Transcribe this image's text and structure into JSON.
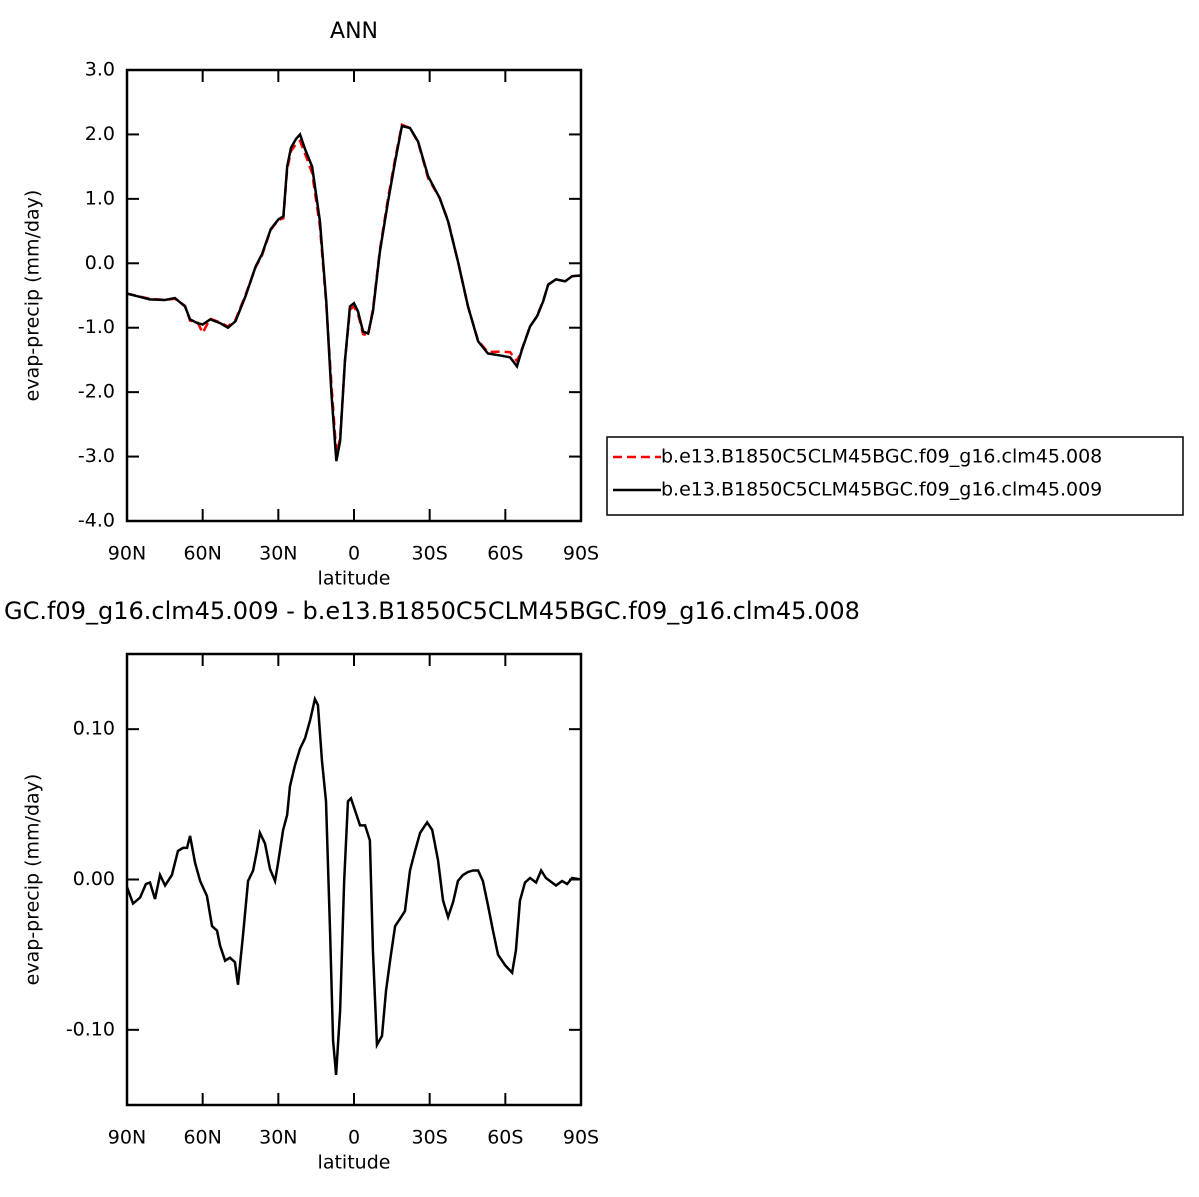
{
  "chart_data": [
    {
      "type": "line",
      "title": "ANN",
      "x_label": "latitude",
      "y_label": "evap-precip (mm/day)",
      "x": [
        90,
        81,
        75,
        71,
        67,
        65,
        62,
        60,
        57,
        53,
        50,
        47,
        43,
        39,
        36.5,
        33,
        30,
        28,
        26.5,
        25,
        23,
        21.4,
        19.4,
        16.6,
        13.5,
        11,
        9,
        7,
        5.5,
        3.6,
        1.6,
        0,
        -1.6,
        -3.6,
        -5.6,
        -7.5,
        -10.3,
        -13.5,
        -16.3,
        -19,
        -22.2,
        -25.4,
        -29.4,
        -34,
        -37.3,
        -41.2,
        -45.2,
        -49.2,
        -53.1,
        -57.9,
        -61.9,
        -64.6,
        -66.6,
        -69.8,
        -72.6,
        -75,
        -77,
        -80.1,
        -83.7,
        -86.5,
        -90
      ],
      "series": [
        {
          "name": "b.e13.B1850C5CLM45BGC.f09_g16.clm45.008",
          "color": "#ff0000",
          "dashed": true,
          "values": [
            -0.47,
            -0.55,
            -0.57,
            -0.55,
            -0.66,
            -0.89,
            -0.92,
            -1.08,
            -0.86,
            -0.92,
            -0.98,
            -0.88,
            -0.49,
            -0.06,
            0.12,
            0.52,
            0.67,
            0.7,
            1.46,
            1.74,
            1.85,
            1.9,
            1.7,
            1.4,
            0.57,
            -0.64,
            -1.85,
            -2.95,
            -2.72,
            -1.52,
            -0.72,
            -0.67,
            -0.79,
            -1.1,
            -1.12,
            -0.71,
            0.22,
            1.01,
            1.62,
            2.15,
            2.1,
            1.88,
            1.32,
            1.01,
            0.66,
            0.03,
            -0.67,
            -1.2,
            -1.38,
            -1.37,
            -1.38,
            -1.52,
            -1.33,
            -0.98,
            -0.82,
            -0.58,
            -0.33,
            -0.25,
            -0.28,
            -0.2,
            -0.19
          ]
        },
        {
          "name": "b.e13.B1850C5CLM45BGC.f09_g16.clm45.009",
          "color": "#000000",
          "dashed": false,
          "values": [
            -0.47,
            -0.56,
            -0.57,
            -0.54,
            -0.67,
            -0.87,
            -0.93,
            -0.95,
            -0.87,
            -0.93,
            -1.0,
            -0.9,
            -0.51,
            -0.05,
            0.14,
            0.53,
            0.68,
            0.73,
            1.5,
            1.79,
            1.93,
            2.0,
            1.77,
            1.5,
            0.65,
            -0.59,
            -1.99,
            -3.07,
            -2.76,
            -1.52,
            -0.67,
            -0.62,
            -0.75,
            -1.06,
            -1.09,
            -0.75,
            0.19,
            0.96,
            1.58,
            2.13,
            2.1,
            1.89,
            1.35,
            1.01,
            0.65,
            0.03,
            -0.67,
            -1.21,
            -1.4,
            -1.43,
            -1.46,
            -1.6,
            -1.34,
            -0.98,
            -0.82,
            -0.59,
            -0.33,
            -0.25,
            -0.28,
            -0.2,
            -0.19
          ]
        }
      ],
      "xlim": [
        90,
        -90
      ],
      "xticks": [
        {
          "value": 90,
          "label": "90N"
        },
        {
          "value": 60,
          "label": "60N"
        },
        {
          "value": 30,
          "label": "30N"
        },
        0,
        {
          "value": -30,
          "label": "30S"
        },
        {
          "value": -60,
          "label": "60S"
        },
        {
          "value": -90,
          "label": "90S"
        }
      ],
      "ylim": [
        -4,
        3
      ],
      "yticks": [
        {
          "value": 3,
          "label": "3.0"
        },
        {
          "value": 2,
          "label": "2.0"
        },
        {
          "value": 1,
          "label": "1.0"
        },
        {
          "value": 0,
          "label": "0.0"
        },
        {
          "value": -1,
          "label": "-1.0"
        },
        {
          "value": -2,
          "label": "-2.0"
        },
        {
          "value": -3,
          "label": "-3.0"
        },
        {
          "value": -4,
          "label": "-4.0"
        }
      ],
      "legend": "right"
    },
    {
      "type": "line",
      "title": "GC.f09_g16.clm45.009 - b.e13.B1850C5CLM45BGC.f09_g16.clm45.008",
      "x_label": "latitude",
      "y_label": "evap-precip (mm/day)",
      "x": [
        90,
        87.6,
        84.8,
        82.5,
        80.9,
        78.9,
        76.9,
        74.9,
        72.2,
        69.8,
        67.8,
        66.2,
        65,
        63,
        61,
        58.3,
        56.3,
        54.3,
        53.1,
        51.1,
        49.2,
        47.2,
        46,
        44,
        42,
        40,
        38.5,
        37.3,
        35.3,
        33.3,
        31.3,
        30.1,
        28.1,
        26.5,
        25.4,
        23.4,
        21.4,
        19.4,
        17.4,
        15.5,
        14.3,
        12.7,
        11.1,
        9.5,
        8.3,
        7.1,
        5.5,
        3.9,
        2.4,
        1.2,
        -0.4,
        -2.4,
        -4.4,
        -6.3,
        -7.5,
        -9.1,
        -11.1,
        -12.7,
        -14.3,
        -16.3,
        -18.3,
        -20.2,
        -22.2,
        -24.2,
        -26.2,
        -29,
        -31,
        -33.3,
        -35.3,
        -37.3,
        -39.3,
        -41.2,
        -43.2,
        -45.2,
        -47.2,
        -49.2,
        -51.1,
        -53.1,
        -55.1,
        -57.1,
        -59.9,
        -62.7,
        -64.2,
        -65.8,
        -67.8,
        -69.8,
        -72.2,
        -74.2,
        -76.1,
        -77.7,
        -80.1,
        -82.5,
        -84.5,
        -86.5,
        -90
      ],
      "values": [
        -0.005,
        -0.016,
        -0.012,
        -0.003,
        -0.002,
        -0.013,
        0.003,
        -0.004,
        0.003,
        0.019,
        0.021,
        0.021,
        0.029,
        0.011,
        -0.001,
        -0.011,
        -0.031,
        -0.034,
        -0.044,
        -0.054,
        -0.052,
        -0.055,
        -0.07,
        -0.037,
        -0.001,
        0.006,
        0.019,
        0.031,
        0.024,
        0.007,
        -0.001,
        0.011,
        0.033,
        0.043,
        0.062,
        0.076,
        0.087,
        0.094,
        0.106,
        0.12,
        0.116,
        0.079,
        0.052,
        -0.034,
        -0.107,
        -0.13,
        -0.087,
        -0.001,
        0.052,
        0.054,
        0.046,
        0.036,
        0.036,
        0.026,
        -0.047,
        -0.11,
        -0.104,
        -0.074,
        -0.054,
        -0.031,
        -0.026,
        -0.021,
        0.006,
        0.019,
        0.031,
        0.038,
        0.033,
        0.013,
        -0.014,
        -0.025,
        -0.015,
        -0.001,
        0.003,
        0.005,
        0.006,
        0.006,
        -0.001,
        -0.017,
        -0.034,
        -0.05,
        -0.057,
        -0.062,
        -0.047,
        -0.014,
        -0.002,
        0.001,
        -0.002,
        0.006,
        0.001,
        -0.001,
        -0.004,
        -0.001,
        -0.003,
        0.001,
        0
      ],
      "color": "#000000",
      "xlim": [
        90,
        -90
      ],
      "xticks": [
        {
          "value": 90,
          "label": "90N"
        },
        {
          "value": 60,
          "label": "60N"
        },
        {
          "value": 30,
          "label": "30N"
        },
        0,
        {
          "value": -30,
          "label": "30S"
        },
        {
          "value": -60,
          "label": "60S"
        },
        {
          "value": -90,
          "label": "90S"
        }
      ],
      "ylim": [
        -0.15,
        0.15
      ],
      "yticks": [
        {
          "value": 0.1,
          "label": "0.10"
        },
        {
          "value": 0,
          "label": "0.00"
        },
        {
          "value": -0.1,
          "label": "-0.10"
        }
      ]
    }
  ]
}
